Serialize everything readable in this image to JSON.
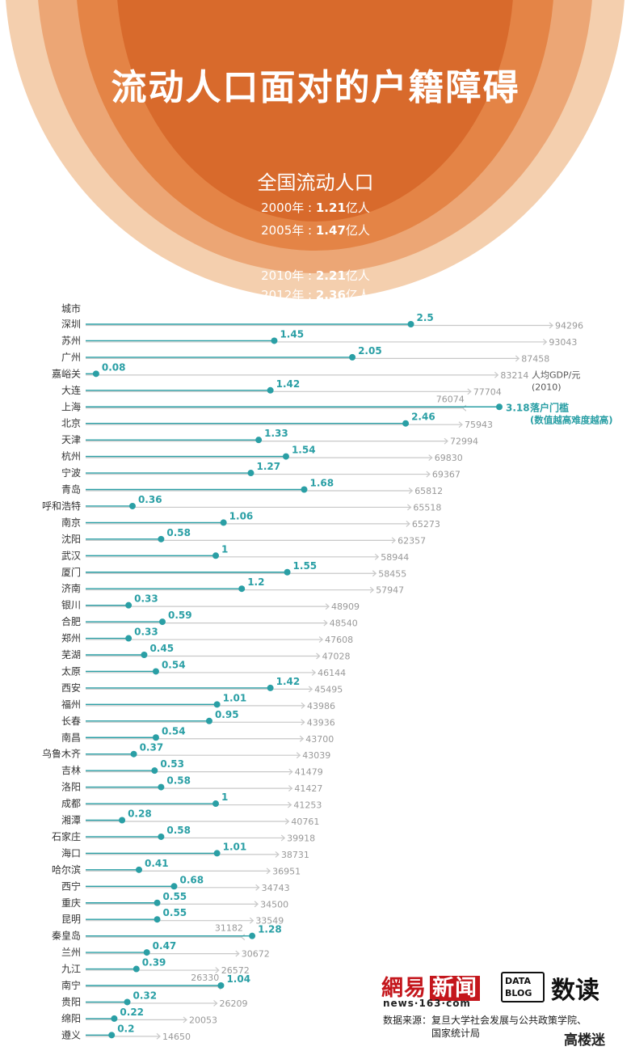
{
  "header": {
    "title": "流动人口面对的户籍障碍",
    "subtitle": "全国流动人口",
    "years": [
      {
        "year": "2000年",
        "value": "1.21",
        "unit": "亿人"
      },
      {
        "year": "2005年",
        "value": "1.47",
        "unit": "亿人"
      },
      {
        "year": "2010年",
        "value": "2.21",
        "unit": "亿人"
      },
      {
        "year": "2012年",
        "value": "2.36",
        "unit": "亿人"
      }
    ],
    "ring_colors": [
      "#f4cfae",
      "#eca675",
      "#e48446",
      "#d86a2c"
    ]
  },
  "chart_data": {
    "type": "scatter",
    "city_column_label": "城市",
    "gdp_label": "人均GDP/元",
    "gdp_label_year": "(2010)",
    "threshold_label": "落户门槛",
    "threshold_note": "(数值越高难度越高)",
    "threshold_color": "#2a9fa5",
    "gdp_color": "#c8c8c8",
    "rows": [
      {
        "city": "深圳",
        "threshold": "2.5",
        "gdp": "94296"
      },
      {
        "city": "苏州",
        "threshold": "1.45",
        "gdp": "93043"
      },
      {
        "city": "广州",
        "threshold": "2.05",
        "gdp": "87458"
      },
      {
        "city": "嘉峪关",
        "threshold": "0.08",
        "gdp": "83214"
      },
      {
        "city": "大连",
        "threshold": "1.42",
        "gdp": "77704"
      },
      {
        "city": "上海",
        "threshold": "3.18",
        "gdp": "76074"
      },
      {
        "city": "北京",
        "threshold": "2.46",
        "gdp": "75943"
      },
      {
        "city": "天津",
        "threshold": "1.33",
        "gdp": "72994"
      },
      {
        "city": "杭州",
        "threshold": "1.54",
        "gdp": "69830"
      },
      {
        "city": "宁波",
        "threshold": "1.27",
        "gdp": "69367"
      },
      {
        "city": "青岛",
        "threshold": "1.68",
        "gdp": "65812"
      },
      {
        "city": "呼和浩特",
        "threshold": "0.36",
        "gdp": "65518"
      },
      {
        "city": "南京",
        "threshold": "1.06",
        "gdp": "65273"
      },
      {
        "city": "沈阳",
        "threshold": "0.58",
        "gdp": "62357"
      },
      {
        "city": "武汉",
        "threshold": "1",
        "gdp": "58944"
      },
      {
        "city": "厦门",
        "threshold": "1.55",
        "gdp": "58455"
      },
      {
        "city": "济南",
        "threshold": "1.2",
        "gdp": "57947"
      },
      {
        "city": "银川",
        "threshold": "0.33",
        "gdp": "48909"
      },
      {
        "city": "合肥",
        "threshold": "0.59",
        "gdp": "48540"
      },
      {
        "city": "郑州",
        "threshold": "0.33",
        "gdp": "47608"
      },
      {
        "city": "芜湖",
        "threshold": "0.45",
        "gdp": "47028"
      },
      {
        "city": "太原",
        "threshold": "0.54",
        "gdp": "46144"
      },
      {
        "city": "西安",
        "threshold": "1.42",
        "gdp": "45495"
      },
      {
        "city": "福州",
        "threshold": "1.01",
        "gdp": "43986"
      },
      {
        "city": "长春",
        "threshold": "0.95",
        "gdp": "43936"
      },
      {
        "city": "南昌",
        "threshold": "0.54",
        "gdp": "43700"
      },
      {
        "city": "乌鲁木齐",
        "threshold": "0.37",
        "gdp": "43039"
      },
      {
        "city": "吉林",
        "threshold": "0.53",
        "gdp": "41479"
      },
      {
        "city": "洛阳",
        "threshold": "0.58",
        "gdp": "41427"
      },
      {
        "city": "成都",
        "threshold": "1",
        "gdp": "41253"
      },
      {
        "city": "湘潭",
        "threshold": "0.28",
        "gdp": "40761"
      },
      {
        "city": "石家庄",
        "threshold": "0.58",
        "gdp": "39918"
      },
      {
        "city": "海口",
        "threshold": "1.01",
        "gdp": "38731"
      },
      {
        "city": "哈尔滨",
        "threshold": "0.41",
        "gdp": "36951"
      },
      {
        "city": "西宁",
        "threshold": "0.68",
        "gdp": "34743"
      },
      {
        "city": "重庆",
        "threshold": "0.55",
        "gdp": "34500"
      },
      {
        "city": "昆明",
        "threshold": "0.55",
        "gdp": "33549"
      },
      {
        "city": "秦皇岛",
        "threshold": "1.28",
        "gdp": "31182"
      },
      {
        "city": "兰州",
        "threshold": "0.47",
        "gdp": "30672"
      },
      {
        "city": "九江",
        "threshold": "0.39",
        "gdp": "26572"
      },
      {
        "city": "南宁",
        "threshold": "1.04",
        "gdp": "26330"
      },
      {
        "city": "贵阳",
        "threshold": "0.32",
        "gdp": "26209"
      },
      {
        "city": "绵阳",
        "threshold": "0.22",
        "gdp": "20053"
      },
      {
        "city": "遵义",
        "threshold": "0.2",
        "gdp": "14650"
      }
    ]
  },
  "footer": {
    "logo_netease_a": "網易",
    "logo_netease_b": "新闻",
    "netease_url": "news·163·com",
    "datablog_line1": "DATA",
    "datablog_line2": "BLOG",
    "shudu": "数读",
    "source_line1": "数据来源：复旦大学社会发展与公共政策学院、",
    "source_line2": "国家统计局",
    "watermark": "高楼迷"
  }
}
